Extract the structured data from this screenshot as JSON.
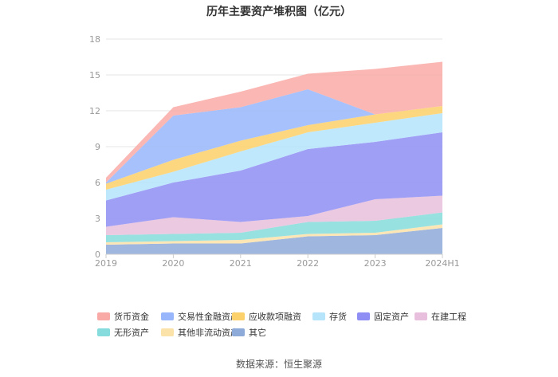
{
  "chart_data": {
    "type": "area",
    "stacked": true,
    "title": "历年主要资产堆积图（亿元）",
    "categories": [
      "2019",
      "2020",
      "2021",
      "2022",
      "2023",
      "2024H1"
    ],
    "y_ticks": [
      "0",
      "3",
      "6",
      "9",
      "12",
      "15",
      "18"
    ],
    "ylim": [
      0,
      18
    ],
    "series": [
      {
        "name": "其它",
        "color": "#8eaad8",
        "values": [
          0.8,
          0.9,
          0.9,
          1.5,
          1.6,
          2.2
        ]
      },
      {
        "name": "其他非流动资产",
        "color": "#fbe2a9",
        "values": [
          0.2,
          0.2,
          0.3,
          0.2,
          0.2,
          0.3
        ]
      },
      {
        "name": "无形资产",
        "color": "#86dcdc",
        "values": [
          0.6,
          0.6,
          0.6,
          1.0,
          1.0,
          1.0
        ]
      },
      {
        "name": "在建工程",
        "color": "#e8bfdc",
        "values": [
          0.7,
          1.4,
          0.9,
          0.5,
          1.8,
          1.4
        ]
      },
      {
        "name": "固定资产",
        "color": "#8f8ef5",
        "values": [
          2.2,
          2.9,
          4.3,
          5.6,
          4.8,
          5.3
        ]
      },
      {
        "name": "存货",
        "color": "#b5e4fb",
        "values": [
          0.9,
          0.9,
          1.6,
          1.4,
          1.6,
          1.6
        ]
      },
      {
        "name": "应收款项融资",
        "color": "#fcd06a",
        "values": [
          0.5,
          1.0,
          0.9,
          0.6,
          0.7,
          0.6
        ]
      },
      {
        "name": "交易性金融资产",
        "color": "#98b6fb",
        "values": [
          0.1,
          3.7,
          2.8,
          3.0,
          0.0,
          0.0
        ]
      },
      {
        "name": "货币资金",
        "color": "#f9aaa6",
        "values": [
          0.4,
          0.7,
          1.3,
          1.3,
          3.8,
          3.7
        ]
      }
    ],
    "legend_position": "bottom",
    "legend_order": [
      "货币资金",
      "交易性金融资产",
      "应收款项融资",
      "存货",
      "固定资产",
      "在建工程",
      "无形资产",
      "其他非流动资产",
      "其它"
    ]
  },
  "source_text": "数据来源：恒生聚源"
}
